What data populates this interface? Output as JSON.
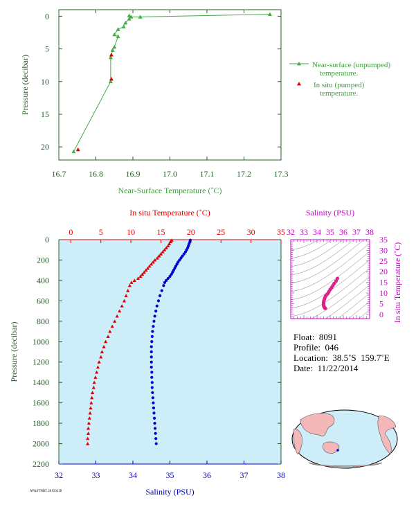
{
  "colors": {
    "green_axis": "#2a5c2a",
    "green_series": "#44aa44",
    "green_label": "#3aa23a",
    "red": "#dd0000",
    "blue": "#0000cc",
    "magenta": "#cc00cc",
    "plot_bg": "#cdeef8",
    "land": "#f5b8b8",
    "ocean": "#cdeef8"
  },
  "float_info": {
    "float": "Float:  8091",
    "profile": "Profile:  046",
    "location": "Location:  38.5˚S  159.7˚E",
    "date": "Date:  11/22/2014"
  },
  "footer_tiny": "AVASTNRT 20150218",
  "chart_data": [
    {
      "id": "near-surface",
      "type": "line",
      "xlabel": "Near-Surface Temperature (˚C)",
      "ylabel": "Pressure (decibar)",
      "xlim": [
        16.7,
        17.3
      ],
      "ylim": [
        22,
        -1
      ],
      "xticks": [
        "16.7",
        "16.8",
        "16.9",
        "17.0",
        "17.1",
        "17.2",
        "17.3"
      ],
      "yticks": [
        "0",
        "5",
        "10",
        "15",
        "20"
      ],
      "legend_position": "right",
      "series": [
        {
          "name": "Near-surface (unpumped) temperature.",
          "legend_lines": [
            "Near-surface (unpumped)",
            "temperature."
          ],
          "marker": "triangle",
          "points": [
            [
              17.27,
              -0.3
            ],
            [
              16.92,
              0.1
            ],
            [
              16.895,
              0.1
            ],
            [
              16.89,
              -0.1
            ],
            [
              16.89,
              0.4
            ],
            [
              16.88,
              1.0
            ],
            [
              16.875,
              1.6
            ],
            [
              16.86,
              2.0
            ],
            [
              16.85,
              2.8
            ],
            [
              16.86,
              3.1
            ],
            [
              16.85,
              4.7
            ],
            [
              16.845,
              5.2
            ],
            [
              16.84,
              6.3
            ],
            [
              16.84,
              10.0
            ],
            [
              16.74,
              20.7
            ]
          ]
        },
        {
          "name": "In situ (pumped) temperature.",
          "legend_lines": [
            "In situ (pumped)",
            "temperature."
          ],
          "marker": "triangle",
          "points": [
            [
              16.84,
              5.9
            ],
            [
              16.84,
              9.6
            ],
            [
              16.75,
              20.4
            ]
          ]
        }
      ]
    },
    {
      "id": "profile",
      "type": "scatter",
      "ylabel": "Pressure (decibar)",
      "ylim": [
        2200,
        0
      ],
      "yticks": [
        "0",
        "200",
        "400",
        "600",
        "800",
        "1000",
        "1200",
        "1400",
        "1600",
        "1800",
        "2000",
        "2200"
      ],
      "top_axis": {
        "label": "In situ Temperature (˚C)",
        "lim": [
          -2,
          35
        ],
        "ticks": [
          "0",
          "5",
          "10",
          "15",
          "20",
          "25",
          "30",
          "35"
        ]
      },
      "bottom_axis": {
        "label": "Salinity (PSU)",
        "lim": [
          32,
          38
        ],
        "ticks": [
          "32",
          "33",
          "34",
          "35",
          "36",
          "37",
          "38"
        ]
      },
      "series": [
        {
          "name": "In situ Temperature",
          "axis": "top",
          "marker": "triangle",
          "points": [
            [
              16.8,
              5
            ],
            [
              16.6,
              20
            ],
            [
              16.4,
              40
            ],
            [
              16.2,
              60
            ],
            [
              15.9,
              80
            ],
            [
              15.6,
              100
            ],
            [
              15.3,
              120
            ],
            [
              15.0,
              140
            ],
            [
              14.7,
              160
            ],
            [
              14.4,
              180
            ],
            [
              14.0,
              200
            ],
            [
              13.7,
              220
            ],
            [
              13.4,
              240
            ],
            [
              13.1,
              260
            ],
            [
              12.8,
              280
            ],
            [
              12.5,
              300
            ],
            [
              12.2,
              320
            ],
            [
              11.9,
              340
            ],
            [
              11.6,
              360
            ],
            [
              11.2,
              380
            ],
            [
              10.6,
              400
            ],
            [
              10.1,
              420
            ],
            [
              9.8,
              450
            ],
            [
              9.5,
              500
            ],
            [
              9.2,
              550
            ],
            [
              8.9,
              600
            ],
            [
              8.5,
              650
            ],
            [
              8.1,
              700
            ],
            [
              7.7,
              750
            ],
            [
              7.3,
              800
            ],
            [
              6.9,
              850
            ],
            [
              6.5,
              900
            ],
            [
              6.2,
              950
            ],
            [
              5.8,
              1000
            ],
            [
              5.5,
              1050
            ],
            [
              5.2,
              1100
            ],
            [
              5.0,
              1150
            ],
            [
              4.7,
              1200
            ],
            [
              4.5,
              1250
            ],
            [
              4.3,
              1300
            ],
            [
              4.1,
              1350
            ],
            [
              3.9,
              1400
            ],
            [
              3.8,
              1450
            ],
            [
              3.6,
              1500
            ],
            [
              3.5,
              1550
            ],
            [
              3.4,
              1600
            ],
            [
              3.3,
              1650
            ],
            [
              3.2,
              1700
            ],
            [
              3.1,
              1750
            ],
            [
              3.0,
              1800
            ],
            [
              2.9,
              1850
            ],
            [
              2.9,
              1900
            ],
            [
              2.8,
              1950
            ],
            [
              2.8,
              2000
            ]
          ]
        },
        {
          "name": "Salinity",
          "axis": "bottom",
          "marker": "dot",
          "points": [
            [
              35.55,
              5
            ],
            [
              35.54,
              20
            ],
            [
              35.52,
              40
            ],
            [
              35.5,
              60
            ],
            [
              35.48,
              80
            ],
            [
              35.45,
              100
            ],
            [
              35.42,
              120
            ],
            [
              35.38,
              140
            ],
            [
              35.34,
              160
            ],
            [
              35.3,
              180
            ],
            [
              35.26,
              200
            ],
            [
              35.22,
              220
            ],
            [
              35.19,
              240
            ],
            [
              35.16,
              260
            ],
            [
              35.13,
              280
            ],
            [
              35.1,
              300
            ],
            [
              35.07,
              320
            ],
            [
              35.04,
              340
            ],
            [
              35.0,
              360
            ],
            [
              34.95,
              380
            ],
            [
              34.9,
              400
            ],
            [
              34.86,
              420
            ],
            [
              34.83,
              450
            ],
            [
              34.78,
              500
            ],
            [
              34.73,
              550
            ],
            [
              34.69,
              600
            ],
            [
              34.65,
              650
            ],
            [
              34.62,
              700
            ],
            [
              34.59,
              750
            ],
            [
              34.57,
              800
            ],
            [
              34.55,
              850
            ],
            [
              34.53,
              900
            ],
            [
              34.52,
              950
            ],
            [
              34.51,
              1000
            ],
            [
              34.5,
              1050
            ],
            [
              34.5,
              1100
            ],
            [
              34.5,
              1150
            ],
            [
              34.5,
              1200
            ],
            [
              34.5,
              1250
            ],
            [
              34.51,
              1300
            ],
            [
              34.51,
              1350
            ],
            [
              34.52,
              1400
            ],
            [
              34.52,
              1450
            ],
            [
              34.53,
              1500
            ],
            [
              34.54,
              1550
            ],
            [
              34.55,
              1600
            ],
            [
              34.56,
              1650
            ],
            [
              34.57,
              1700
            ],
            [
              34.58,
              1750
            ],
            [
              34.59,
              1800
            ],
            [
              34.6,
              1850
            ],
            [
              34.61,
              1900
            ],
            [
              34.62,
              1950
            ],
            [
              34.63,
              2000
            ]
          ]
        }
      ]
    },
    {
      "id": "ts-diagram",
      "type": "scatter",
      "xlabel": "Salinity (PSU)",
      "ylabel": "In situ Temperature (˚C)",
      "xlim": [
        32,
        38
      ],
      "ylim": [
        -2,
        35
      ],
      "xticks": [
        "32",
        "33",
        "34",
        "35",
        "36",
        "37",
        "38"
      ],
      "yticks": [
        "0",
        "5",
        "10",
        "15",
        "20",
        "25",
        "30",
        "35"
      ],
      "series": [
        {
          "name": "T-S",
          "marker": "dot",
          "points": [
            [
              35.55,
              16.8
            ],
            [
              35.45,
              15.6
            ],
            [
              35.3,
              14.4
            ],
            [
              35.2,
              13.4
            ],
            [
              35.1,
              12.5
            ],
            [
              35.0,
              11.6
            ],
            [
              34.9,
              10.6
            ],
            [
              34.83,
              9.8
            ],
            [
              34.73,
              9.2
            ],
            [
              34.65,
              8.5
            ],
            [
              34.59,
              7.7
            ],
            [
              34.55,
              6.9
            ],
            [
              34.52,
              6.2
            ],
            [
              34.5,
              5.5
            ],
            [
              34.5,
              5.0
            ],
            [
              34.5,
              4.5
            ],
            [
              34.51,
              4.1
            ],
            [
              34.52,
              3.8
            ],
            [
              34.54,
              3.5
            ],
            [
              34.56,
              3.3
            ],
            [
              34.58,
              3.1
            ],
            [
              34.6,
              2.9
            ],
            [
              34.63,
              2.8
            ]
          ]
        }
      ]
    }
  ]
}
